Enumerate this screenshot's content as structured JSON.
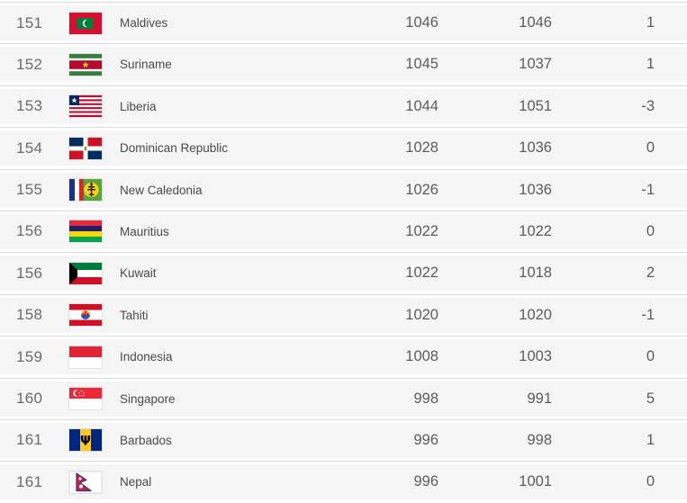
{
  "theme": {
    "row_background": "#f5f6f6",
    "separator_color": "#d9d9d9",
    "rank_text_color": "#6b6b6b",
    "name_text_color": "#4a4a4a",
    "points_text_color": "#5c5c5c"
  },
  "table": {
    "description": "ranking-table-rows-151-161",
    "rows": [
      {
        "rank": "151",
        "flag": "maldives-flag-icon",
        "country": "Maldives",
        "points": "1046",
        "previous_points": "1046",
        "change": "1"
      },
      {
        "rank": "152",
        "flag": "suriname-flag-icon",
        "country": "Suriname",
        "points": "1045",
        "previous_points": "1037",
        "change": "1"
      },
      {
        "rank": "153",
        "flag": "liberia-flag-icon",
        "country": "Liberia",
        "points": "1044",
        "previous_points": "1051",
        "change": "-3"
      },
      {
        "rank": "154",
        "flag": "dominican-republic-flag-icon",
        "country": "Dominican Republic",
        "points": "1028",
        "previous_points": "1036",
        "change": "0"
      },
      {
        "rank": "155",
        "flag": "new-caledonia-flag-icon",
        "country": "New Caledonia",
        "points": "1026",
        "previous_points": "1036",
        "change": "-1"
      },
      {
        "rank": "156",
        "flag": "mauritius-flag-icon",
        "country": "Mauritius",
        "points": "1022",
        "previous_points": "1022",
        "change": "0"
      },
      {
        "rank": "156",
        "flag": "kuwait-flag-icon",
        "country": "Kuwait",
        "points": "1022",
        "previous_points": "1018",
        "change": "2"
      },
      {
        "rank": "158",
        "flag": "tahiti-flag-icon",
        "country": "Tahiti",
        "points": "1020",
        "previous_points": "1020",
        "change": "-1"
      },
      {
        "rank": "159",
        "flag": "indonesia-flag-icon",
        "country": "Indonesia",
        "points": "1008",
        "previous_points": "1003",
        "change": "0"
      },
      {
        "rank": "160",
        "flag": "singapore-flag-icon",
        "country": "Singapore",
        "points": "998",
        "previous_points": "991",
        "change": "5"
      },
      {
        "rank": "161",
        "flag": "barbados-flag-icon",
        "country": "Barbados",
        "points": "996",
        "previous_points": "998",
        "change": "1"
      },
      {
        "rank": "161",
        "flag": "nepal-flag-icon",
        "country": "Nepal",
        "points": "996",
        "previous_points": "1001",
        "change": "0"
      }
    ]
  }
}
